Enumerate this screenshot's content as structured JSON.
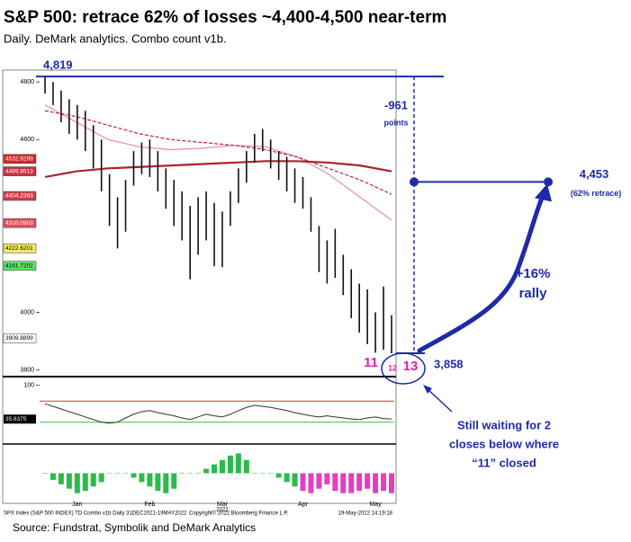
{
  "chart_data": {
    "type": "ohlc",
    "title": "S&P 500: retrace 62% of losses ~4,400-4,500 near-term",
    "subtitle": "Daily. DeMark analytics.  Combo count v1b.",
    "categories": [
      null,
      null,
      null,
      null,
      "Jan",
      null,
      null,
      null,
      null,
      null,
      null,
      null,
      null,
      "Feb",
      null,
      null,
      null,
      null,
      null,
      null,
      null,
      null,
      "Mar",
      null,
      null,
      null,
      null,
      null,
      null,
      null,
      null,
      null,
      "Apr",
      null,
      null,
      null,
      null,
      null,
      null,
      null,
      null,
      "May",
      null,
      null
    ],
    "year_label": "2022",
    "high": [
      4818,
      4800,
      4770,
      4740,
      4720,
      4700,
      4650,
      4600,
      4480,
      4400,
      4460,
      4560,
      4590,
      4600,
      4560,
      4500,
      4460,
      4420,
      4370,
      4400,
      4420,
      4380,
      4350,
      4420,
      4500,
      4560,
      4620,
      4637,
      4600,
      4560,
      4540,
      4500,
      4470,
      4400,
      4300,
      4250,
      4290,
      4200,
      4150,
      4100,
      4080,
      4000,
      4090,
      3990
    ],
    "low": [
      4760,
      4720,
      4660,
      4620,
      4600,
      4560,
      4500,
      4420,
      4300,
      4222,
      4280,
      4440,
      4480,
      4470,
      4420,
      4360,
      4300,
      4250,
      4115,
      4200,
      4250,
      4160,
      4157,
      4300,
      4380,
      4450,
      4520,
      4560,
      4500,
      4460,
      4420,
      4380,
      4360,
      4280,
      4140,
      4100,
      4120,
      4060,
      3980,
      3930,
      3890,
      3860,
      3870,
      3858
    ],
    "color": "#111111",
    "ylim": [
      3780,
      4835
    ],
    "yticks": [
      3800,
      4000,
      4600,
      4800
    ],
    "moving_averages": [
      {
        "color": "#e88aa8",
        "style": "solid",
        "values": [
          4720,
          4660,
          4600,
          4575,
          4565,
          4570,
          4580,
          4575,
          4540,
          4480,
          4400,
          4320
        ]
      },
      {
        "color": "#c0233a",
        "style": "dashed",
        "values": [
          4700,
          4680,
          4650,
          4620,
          4600,
          4590,
          4580,
          4565,
          4540,
          4500,
          4460,
          4410
        ]
      },
      {
        "color": "#b0202e",
        "style": "thick",
        "values": [
          4470,
          4490,
          4500,
          4505,
          4510,
          4515,
          4520,
          4525,
          4525,
          4520,
          4510,
          4490
        ]
      }
    ],
    "price_tags": [
      {
        "value": 4532.9299,
        "color": "#d42a2a",
        "text_color": "#ffffff"
      },
      {
        "value": 4489.8513,
        "color": "#c83040",
        "text_color": "#ffffff"
      },
      {
        "value": 4404.2363,
        "color": "#d04050",
        "text_color": "#ffffff"
      },
      {
        "value": 4310.0903,
        "color": "#e05060",
        "text_color": "#ffffff"
      },
      {
        "value": 4222.6201,
        "color": "#f5ec60",
        "text_color": "#000000"
      },
      {
        "value": 4161.7202,
        "color": "#5ee36a",
        "text_color": "#000000"
      },
      {
        "value": 3909.8899,
        "color": "#ffffff",
        "text_color": "#000000"
      }
    ],
    "annotations": {
      "peak": {
        "label": "4,819",
        "value": 4819
      },
      "target": {
        "label": "4,453",
        "value": 4453,
        "note": "(62% retrace)"
      },
      "low": {
        "label": "3,858",
        "value": 3858
      },
      "drop": {
        "label": "-961",
        "unit": "points"
      },
      "rally": [
        "+16%",
        "rally"
      ],
      "counts": [
        "11",
        "12",
        "13"
      ],
      "callout": [
        "Still waiting for 2",
        "closes below where",
        "“11” closed"
      ],
      "color": "#1f2aa8"
    },
    "oscillator": {
      "ylim": [
        -8,
        113
      ],
      "yticks": [
        100
      ],
      "color": "#333333",
      "upper": 70,
      "lower": 30,
      "last_tag": 35.8375,
      "values": [
        65,
        60,
        55,
        50,
        45,
        40,
        35,
        30,
        28,
        30,
        38,
        45,
        50,
        52,
        48,
        45,
        42,
        38,
        35,
        40,
        45,
        42,
        40,
        45,
        52,
        58,
        62,
        60,
        58,
        55,
        52,
        48,
        45,
        42,
        40,
        42,
        40,
        38,
        36,
        35,
        38,
        40,
        37,
        36
      ]
    },
    "histogram": {
      "ylim": [
        -12,
        12
      ],
      "series": [
        {
          "color": "#2bbb4c",
          "values": [
            0,
            -3,
            -5,
            -7,
            -9,
            -8,
            -6,
            -4,
            0,
            0,
            0,
            -2,
            -4,
            -6,
            -8,
            -9,
            -7,
            0,
            0,
            0,
            2,
            4,
            6,
            8,
            9,
            6,
            0,
            0,
            0,
            -2,
            -4,
            -6,
            null,
            null,
            null,
            null,
            null,
            null,
            null,
            null,
            null,
            null,
            null,
            null
          ]
        },
        {
          "color": "#e040c0",
          "values": [
            null,
            null,
            null,
            null,
            null,
            null,
            null,
            null,
            null,
            null,
            null,
            null,
            null,
            null,
            null,
            null,
            null,
            null,
            null,
            null,
            null,
            null,
            null,
            null,
            null,
            null,
            null,
            null,
            null,
            null,
            null,
            null,
            -8,
            -9,
            -7,
            -5,
            -8,
            -9,
            -9,
            -8,
            -7,
            -9,
            -8,
            -9
          ]
        }
      ]
    },
    "footer": {
      "left": "SPX Index (S&P 500 INDEX) TD Combo v1b  Daily 31DEC2021-19MAY2022",
      "middle": "Copyright© 2022 Bloomberg Finance L.P.",
      "right": "19-May-2022 14:19:18"
    },
    "source": "Source: Fundstrat, Symbolik and DeMark Analytics"
  }
}
